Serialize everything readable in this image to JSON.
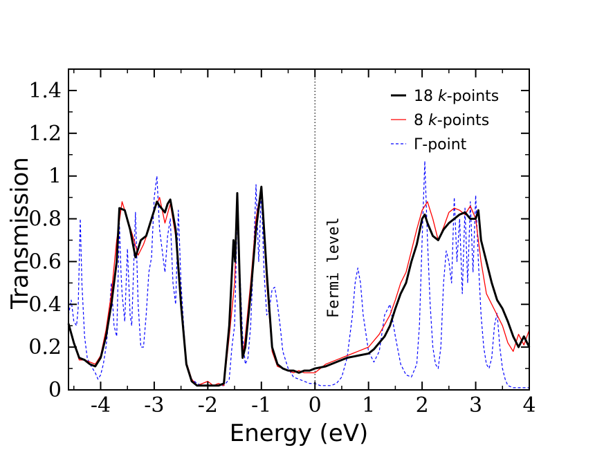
{
  "chart_data": {
    "type": "line",
    "title": "",
    "xlabel": "Energy (eV)",
    "ylabel": "Transmission",
    "xlim": [
      -4.6,
      4.0
    ],
    "ylim": [
      0,
      1.5
    ],
    "xticks": [
      -4,
      -3,
      -2,
      -1,
      0,
      1,
      2,
      3,
      4
    ],
    "xtick_labels": [
      "-4",
      "-3",
      "-2",
      "-1",
      "0",
      "1",
      "2",
      "3",
      "4"
    ],
    "yticks": [
      0,
      0.2,
      0.4,
      0.6,
      0.8,
      1.0,
      1.2,
      1.4
    ],
    "ytick_labels": [
      "0",
      "0.2",
      "0.4",
      "0.6",
      "0.8",
      "1",
      "1.2",
      "1.4"
    ],
    "fermi_level": 0,
    "annotation": "Fermi level",
    "legend": {
      "placement": "top-right",
      "entries": [
        {
          "pre": "18 ",
          "ital": "k",
          "post": "-points",
          "color": "#000000",
          "style": "solid-thick"
        },
        {
          "pre": "8 ",
          "ital": "k",
          "post": "-points",
          "color": "#ff0000",
          "style": "solid-thin"
        },
        {
          "pre": "Γ-point",
          "ital": "",
          "post": "",
          "color": "#0000ff",
          "style": "dashed"
        }
      ]
    },
    "series": [
      {
        "name": "18 k-points",
        "color": "#000000",
        "x": [
          -4.6,
          -4.5,
          -4.4,
          -4.3,
          -4.2,
          -4.1,
          -4.0,
          -3.9,
          -3.8,
          -3.7,
          -3.65,
          -3.55,
          -3.45,
          -3.35,
          -3.25,
          -3.15,
          -3.05,
          -2.95,
          -2.9,
          -2.8,
          -2.75,
          -2.7,
          -2.6,
          -2.5,
          -2.4,
          -2.3,
          -2.2,
          -2.1,
          -2.0,
          -1.9,
          -1.8,
          -1.7,
          -1.6,
          -1.55,
          -1.52,
          -1.49,
          -1.45,
          -1.42,
          -1.38,
          -1.35,
          -1.3,
          -1.2,
          -1.1,
          -1.0,
          -0.9,
          -0.8,
          -0.7,
          -0.6,
          -0.5,
          -0.4,
          -0.3,
          -0.2,
          -0.1,
          0.0,
          0.2,
          0.4,
          0.6,
          0.8,
          1.0,
          1.1,
          1.2,
          1.3,
          1.4,
          1.5,
          1.6,
          1.7,
          1.8,
          1.9,
          2.0,
          2.05,
          2.1,
          2.2,
          2.3,
          2.4,
          2.5,
          2.6,
          2.7,
          2.8,
          2.9,
          3.0,
          3.05,
          3.1,
          3.2,
          3.3,
          3.4,
          3.5,
          3.6,
          3.7,
          3.8,
          3.9,
          4.0
        ],
        "y": [
          0.31,
          0.22,
          0.15,
          0.14,
          0.12,
          0.11,
          0.15,
          0.25,
          0.4,
          0.6,
          0.85,
          0.84,
          0.75,
          0.62,
          0.7,
          0.72,
          0.8,
          0.88,
          0.86,
          0.83,
          0.87,
          0.89,
          0.75,
          0.4,
          0.12,
          0.04,
          0.02,
          0.02,
          0.02,
          0.02,
          0.02,
          0.03,
          0.3,
          0.55,
          0.7,
          0.6,
          0.92,
          0.65,
          0.3,
          0.15,
          0.2,
          0.45,
          0.75,
          0.95,
          0.55,
          0.2,
          0.12,
          0.1,
          0.09,
          0.09,
          0.08,
          0.09,
          0.09,
          0.1,
          0.11,
          0.13,
          0.15,
          0.16,
          0.17,
          0.19,
          0.22,
          0.25,
          0.3,
          0.38,
          0.45,
          0.5,
          0.6,
          0.68,
          0.8,
          0.82,
          0.78,
          0.72,
          0.7,
          0.75,
          0.78,
          0.8,
          0.82,
          0.83,
          0.8,
          0.8,
          0.84,
          0.7,
          0.6,
          0.5,
          0.42,
          0.38,
          0.32,
          0.25,
          0.2,
          0.25,
          0.2
        ]
      },
      {
        "name": "8 k-points",
        "color": "#ff0000",
        "x": [
          -4.6,
          -4.5,
          -4.4,
          -4.3,
          -4.2,
          -4.1,
          -4.0,
          -3.9,
          -3.8,
          -3.7,
          -3.6,
          -3.5,
          -3.4,
          -3.3,
          -3.2,
          -3.1,
          -3.0,
          -2.9,
          -2.8,
          -2.7,
          -2.6,
          -2.5,
          -2.4,
          -2.3,
          -2.2,
          -2.1,
          -2.0,
          -1.9,
          -1.8,
          -1.7,
          -1.6,
          -1.5,
          -1.45,
          -1.4,
          -1.35,
          -1.3,
          -1.2,
          -1.1,
          -1.0,
          -0.9,
          -0.8,
          -0.7,
          -0.6,
          -0.5,
          -0.4,
          -0.3,
          -0.2,
          -0.1,
          0.0,
          0.2,
          0.4,
          0.6,
          0.8,
          1.0,
          1.2,
          1.4,
          1.5,
          1.6,
          1.7,
          1.8,
          1.9,
          2.0,
          2.1,
          2.2,
          2.3,
          2.4,
          2.5,
          2.6,
          2.7,
          2.8,
          2.9,
          3.0,
          3.1,
          3.2,
          3.3,
          3.4,
          3.5,
          3.6,
          3.7,
          3.8,
          3.9,
          4.0
        ],
        "y": [
          0.3,
          0.22,
          0.14,
          0.14,
          0.13,
          0.12,
          0.16,
          0.28,
          0.45,
          0.7,
          0.88,
          0.8,
          0.72,
          0.63,
          0.68,
          0.75,
          0.84,
          0.9,
          0.78,
          0.87,
          0.72,
          0.42,
          0.13,
          0.05,
          0.02,
          0.03,
          0.04,
          0.02,
          0.03,
          0.02,
          0.25,
          0.5,
          0.85,
          0.4,
          0.15,
          0.25,
          0.5,
          0.8,
          0.95,
          0.5,
          0.18,
          0.11,
          0.1,
          0.09,
          0.08,
          0.09,
          0.08,
          0.08,
          0.08,
          0.12,
          0.14,
          0.16,
          0.18,
          0.2,
          0.26,
          0.35,
          0.42,
          0.5,
          0.55,
          0.65,
          0.75,
          0.84,
          0.88,
          0.8,
          0.7,
          0.76,
          0.83,
          0.85,
          0.84,
          0.82,
          0.86,
          0.8,
          0.6,
          0.45,
          0.4,
          0.35,
          0.3,
          0.22,
          0.18,
          0.26,
          0.21,
          0.28
        ]
      },
      {
        "name": "Γ-point",
        "color": "#0000ff",
        "x": [
          -4.6,
          -4.55,
          -4.5,
          -4.45,
          -4.42,
          -4.38,
          -4.35,
          -4.3,
          -4.25,
          -4.2,
          -4.15,
          -4.1,
          -4.05,
          -4.0,
          -3.95,
          -3.9,
          -3.85,
          -3.8,
          -3.75,
          -3.7,
          -3.65,
          -3.62,
          -3.6,
          -3.55,
          -3.5,
          -3.45,
          -3.42,
          -3.4,
          -3.35,
          -3.3,
          -3.25,
          -3.2,
          -3.15,
          -3.1,
          -3.05,
          -3.0,
          -2.95,
          -2.9,
          -2.85,
          -2.8,
          -2.75,
          -2.7,
          -2.65,
          -2.6,
          -2.55,
          -2.5,
          -2.45,
          -2.4,
          -2.3,
          -2.2,
          -2.1,
          -2.0,
          -1.9,
          -1.8,
          -1.7,
          -1.6,
          -1.55,
          -1.5,
          -1.48,
          -1.45,
          -1.4,
          -1.35,
          -1.3,
          -1.25,
          -1.2,
          -1.15,
          -1.1,
          -1.05,
          -1.0,
          -0.95,
          -0.9,
          -0.85,
          -0.8,
          -0.75,
          -0.7,
          -0.65,
          -0.6,
          -0.5,
          -0.4,
          -0.3,
          -0.2,
          -0.1,
          0.0,
          0.1,
          0.2,
          0.3,
          0.4,
          0.5,
          0.6,
          0.7,
          0.75,
          0.8,
          0.85,
          0.9,
          1.0,
          1.1,
          1.2,
          1.3,
          1.4,
          1.5,
          1.6,
          1.7,
          1.8,
          1.9,
          1.95,
          2.0,
          2.05,
          2.1,
          2.15,
          2.2,
          2.25,
          2.3,
          2.35,
          2.4,
          2.45,
          2.5,
          2.55,
          2.6,
          2.65,
          2.7,
          2.75,
          2.8,
          2.85,
          2.9,
          2.95,
          3.0,
          3.05,
          3.1,
          3.15,
          3.2,
          3.25,
          3.3,
          3.35,
          3.4,
          3.45,
          3.5,
          3.55,
          3.6,
          3.7,
          3.8,
          3.9,
          4.0
        ],
        "y": [
          0.35,
          0.42,
          0.32,
          0.3,
          0.38,
          0.8,
          0.5,
          0.25,
          0.15,
          0.12,
          0.1,
          0.08,
          0.05,
          0.07,
          0.12,
          0.2,
          0.32,
          0.5,
          0.3,
          0.25,
          0.78,
          0.55,
          0.45,
          0.32,
          0.66,
          0.35,
          0.3,
          0.45,
          0.83,
          0.4,
          0.2,
          0.2,
          0.35,
          0.55,
          0.62,
          0.9,
          1.0,
          0.75,
          0.65,
          0.55,
          0.72,
          0.8,
          0.5,
          0.4,
          0.84,
          0.5,
          0.3,
          0.12,
          0.05,
          0.03,
          0.02,
          0.02,
          0.02,
          0.02,
          0.02,
          0.05,
          0.2,
          0.3,
          0.5,
          0.85,
          0.55,
          0.25,
          0.12,
          0.15,
          0.3,
          0.6,
          0.96,
          0.6,
          0.93,
          0.55,
          0.35,
          0.38,
          0.47,
          0.48,
          0.4,
          0.3,
          0.18,
          0.1,
          0.06,
          0.05,
          0.04,
          0.03,
          0.03,
          0.02,
          0.02,
          0.02,
          0.03,
          0.06,
          0.15,
          0.35,
          0.5,
          0.57,
          0.5,
          0.35,
          0.18,
          0.13,
          0.18,
          0.35,
          0.4,
          0.25,
          0.12,
          0.07,
          0.06,
          0.12,
          0.3,
          0.7,
          1.07,
          0.7,
          0.4,
          0.2,
          0.12,
          0.1,
          0.2,
          0.5,
          0.65,
          0.6,
          0.5,
          0.9,
          0.6,
          0.8,
          0.45,
          0.85,
          0.5,
          0.88,
          0.55,
          0.91,
          0.6,
          0.35,
          0.2,
          0.12,
          0.1,
          0.15,
          0.3,
          0.36,
          0.2,
          0.1,
          0.05,
          0.02,
          0.01,
          0.01,
          0.01,
          0.01
        ]
      }
    ]
  }
}
